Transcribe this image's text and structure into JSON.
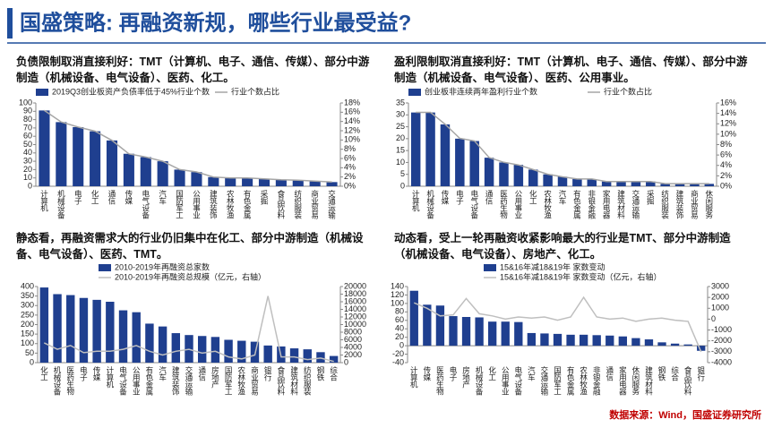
{
  "header": {
    "title": "国盛策略: 再融资新规，哪些行业最受益?",
    "source": "数据来源：Wind，国盛证券研究所"
  },
  "chart_data": [
    {
      "type": "bar",
      "title": "负债限制取消直接利好：TMT（计算机、电子、通信、传媒）、部分中游制造（机械设备、电气设备）、医药、化工。",
      "categories": [
        "计算机",
        "机械设备",
        "电子",
        "化工",
        "通信",
        "传媒",
        "电气设备",
        "汽车",
        "国防军工",
        "公用事业",
        "建筑装饰",
        "农林牧渔",
        "有色金属",
        "采掘",
        "食品饮料",
        "纺织服装",
        "商业贸易",
        "交通运输"
      ],
      "series": [
        {
          "name": "2019Q3创业板资产负债率低于45%行业个数",
          "color": "#1f3f8f",
          "values": [
            91,
            77,
            71,
            66,
            55,
            39,
            35,
            30,
            20,
            17,
            11,
            10,
            10,
            9,
            8,
            7,
            6,
            5
          ]
        },
        {
          "name": "行业个数占比",
          "type": "line",
          "axis": "y2",
          "color": "#a6a6a6",
          "values": [
            16.4,
            13.9,
            12.8,
            11.9,
            9.9,
            7,
            6.3,
            5.4,
            3.6,
            3.1,
            2,
            1.8,
            1.8,
            1.6,
            1.4,
            1.3,
            1.1,
            0.9
          ]
        }
      ],
      "ylim": [
        0,
        100
      ],
      "yticks": [
        0,
        10,
        20,
        30,
        40,
        50,
        60,
        70,
        80,
        90,
        100
      ],
      "y2lim": [
        0,
        18
      ],
      "y2ticks": [
        {
          "value": 0,
          "label": "0%"
        },
        {
          "value": 2,
          "label": "2%"
        },
        {
          "value": 4,
          "label": "4%"
        },
        {
          "value": 6,
          "label": "6%"
        },
        {
          "value": 8,
          "label": "8%"
        },
        {
          "value": 10,
          "label": "10%"
        },
        {
          "value": 12,
          "label": "12%"
        },
        {
          "value": 14,
          "label": "14%"
        },
        {
          "value": 16,
          "label": "16%"
        },
        {
          "value": 18,
          "label": "18%"
        }
      ]
    },
    {
      "type": "bar",
      "title": "盈利限制取消直接利好：TMT（计算机、电子、通信、传媒）、部分中游制造（机械设备、电气设备）、医药、公用事业。",
      "categories": [
        "计算机",
        "机械设备",
        "传媒",
        "电子",
        "电气设备",
        "通信",
        "医药生物",
        "公用事业",
        "化工",
        "农林牧渔",
        "汽车",
        "有色金属",
        "非银金融",
        "家用电器",
        "建筑材料",
        "交通运输",
        "采掘",
        "纺织服装",
        "建筑装饰",
        "商业贸易",
        "休闲服务"
      ],
      "series": [
        {
          "name": "创业板非连续两年盈利行业个数",
          "color": "#1f3f8f",
          "values": [
            31,
            31,
            26,
            20,
            19,
            12,
            10,
            9,
            7,
            5,
            4,
            3,
            3,
            2,
            2,
            2,
            2,
            1,
            1,
            1,
            1
          ]
        },
        {
          "name": "行业个数占比",
          "type": "line",
          "axis": "y2",
          "color": "#a6a6a6",
          "values": [
            14.2,
            14.2,
            11.9,
            9.2,
            8.7,
            5.5,
            4.6,
            4.1,
            3.2,
            2.3,
            1.8,
            1.4,
            1.4,
            0.9,
            0.9,
            0.9,
            0.9,
            0.5,
            0.5,
            0.5,
            0.5
          ]
        }
      ],
      "ylim": [
        0,
        35
      ],
      "yticks": [
        0,
        5,
        10,
        15,
        20,
        25,
        30,
        35
      ],
      "y2lim": [
        0,
        16
      ],
      "y2ticks": [
        {
          "value": 0,
          "label": "0%"
        },
        {
          "value": 2,
          "label": "2%"
        },
        {
          "value": 4,
          "label": "4%"
        },
        {
          "value": 6,
          "label": "6%"
        },
        {
          "value": 8,
          "label": "8%"
        },
        {
          "value": 10,
          "label": "10%"
        },
        {
          "value": 12,
          "label": "12%"
        },
        {
          "value": 14,
          "label": "14%"
        },
        {
          "value": 16,
          "label": "16%"
        }
      ]
    },
    {
      "type": "bar",
      "title": "静态看，再融资需求大的行业仍旧集中在化工、部分中游制造（机械设备、电气设备）、医药、TMT。",
      "categories": [
        "化工",
        "机械设备",
        "医药生物",
        "电子",
        "传媒",
        "计算机",
        "电气设备",
        "公用事业",
        "有色金属",
        "汽车",
        "建筑装饰",
        "交通运输",
        "通信",
        "房地产",
        "国防军工",
        "农林牧渔",
        "商业贸易",
        "银行",
        "食品饮料",
        "建筑材料",
        "纺织服装",
        "钢铁",
        "综合"
      ],
      "series": [
        {
          "name": "2010-2019年再融资总家数",
          "color": "#1f3f8f",
          "values": [
            395,
            360,
            355,
            340,
            330,
            320,
            275,
            265,
            205,
            190,
            155,
            145,
            140,
            135,
            120,
            115,
            110,
            90,
            85,
            75,
            70,
            55,
            35
          ]
        },
        {
          "name": "2010-2019年再融资总规模（亿元，右轴）",
          "type": "line",
          "axis": "y2",
          "color": "#bfbfbf",
          "values": [
            5200,
            3500,
            4500,
            2600,
            3000,
            3000,
            3500,
            4500,
            3000,
            2000,
            3000,
            3500,
            2500,
            3000,
            1500,
            1000,
            2000,
            17500,
            1500,
            1500,
            800,
            1200,
            300
          ]
        }
      ],
      "ylim": [
        0,
        400
      ],
      "yticks": [
        0,
        50,
        100,
        150,
        200,
        250,
        300,
        350,
        400
      ],
      "y2lim": [
        0,
        20000
      ],
      "y2ticks": [
        0,
        2000,
        4000,
        6000,
        8000,
        10000,
        12000,
        14000,
        16000,
        18000,
        20000
      ]
    },
    {
      "type": "bar",
      "title": "动态看，受上一轮再融资收紧影响最大的行业是TMT、部分中游制造（机械设备、电气设备）、房地产、化工。",
      "categories": [
        "计算机",
        "传媒",
        "医药生物",
        "电子",
        "房地产",
        "机械设备",
        "化工",
        "公用事业",
        "电气设备",
        "汽车",
        "交通运输",
        "国防军工",
        "有色金属",
        "农林牧渔",
        "非银金融",
        "通信",
        "家用电器",
        "休闲服务",
        "建筑材料",
        "钢铁",
        "综合",
        "食品饮料",
        "银行"
      ],
      "series": [
        {
          "name": "15&16年减18&19年 家数变动",
          "color": "#1f3f8f",
          "values": [
            130,
            97,
            95,
            70,
            68,
            67,
            57,
            57,
            56,
            30,
            29,
            28,
            26,
            26,
            25,
            24,
            22,
            18,
            15,
            8,
            5,
            3,
            -12
          ]
        },
        {
          "name": "15&16年减18&19年 家数变动（亿元，右轴）",
          "type": "line",
          "axis": "y2",
          "color": "#bfbfbf",
          "values": [
            1500,
            1000,
            300,
            400,
            1900,
            500,
            300,
            0,
            200,
            100,
            200,
            -100,
            200,
            2000,
            200,
            0,
            100,
            -200,
            0,
            100,
            -100,
            -200,
            -3000
          ]
        }
      ],
      "ylim": [
        -40,
        140
      ],
      "yticks": [
        -40,
        -20,
        0,
        20,
        40,
        60,
        80,
        100,
        120,
        140
      ],
      "y2lim": [
        -4000,
        3000
      ],
      "y2ticks": [
        -4000,
        -3000,
        -2000,
        -1000,
        0,
        1000,
        2000,
        3000
      ]
    }
  ]
}
